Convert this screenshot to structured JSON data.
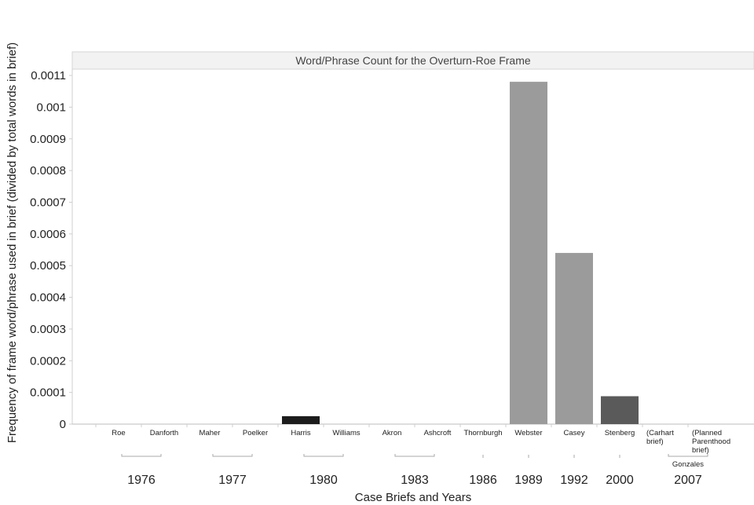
{
  "chart_data": {
    "type": "bar",
    "title": "Word/Phrase Count for the Overturn-Roe Frame",
    "xlabel": "Case Briefs and Years",
    "ylabel": "Frequency of frame word/phrase used in brief (divided by total words in brief)",
    "ylim": [
      0,
      0.00112
    ],
    "yticks": [
      "0",
      "0.0001",
      "0.0002",
      "0.0003",
      "0.0004",
      "0.0005",
      "0.0006",
      "0.0007",
      "0.0008",
      "0.0009",
      "0.001",
      "0.0011"
    ],
    "grid": false,
    "categories": [
      {
        "label": "Roe"
      },
      {
        "label": "Danforth"
      },
      {
        "label": "Maher"
      },
      {
        "label": "Poelker"
      },
      {
        "label": "Harris"
      },
      {
        "label": "Williams"
      },
      {
        "label": "Akron"
      },
      {
        "label": "Ashcroft"
      },
      {
        "label": "Thornburgh"
      },
      {
        "label": "Webster"
      },
      {
        "label": "Casey"
      },
      {
        "label": "Stenberg"
      },
      {
        "label": "(Carhart\nbrief)"
      },
      {
        "label": "(Planned\nParenthood\nbrief)"
      }
    ],
    "values": [
      0,
      0,
      0,
      0,
      2.5e-05,
      0,
      0,
      0,
      0,
      0.00108,
      0.00054,
      8.8e-05,
      0,
      0
    ],
    "bar_colors": [
      "#9b9b9b",
      "#9b9b9b",
      "#9b9b9b",
      "#9b9b9b",
      "#1c1c1c",
      "#9b9b9b",
      "#9b9b9b",
      "#9b9b9b",
      "#9b9b9b",
      "#9b9b9b",
      "#9b9b9b",
      "#5a5a5a",
      "#9b9b9b",
      "#9b9b9b"
    ],
    "year_groups": [
      {
        "year": "1976",
        "from": 0,
        "to": 1
      },
      {
        "year": "1977",
        "from": 2,
        "to": 3
      },
      {
        "year": "1980",
        "from": 4,
        "to": 5
      },
      {
        "year": "1983",
        "from": 6,
        "to": 7
      },
      {
        "year": "1986",
        "from": 8,
        "to": 8
      },
      {
        "year": "1989",
        "from": 9,
        "to": 9
      },
      {
        "year": "1992",
        "from": 10,
        "to": 10
      },
      {
        "year": "2000",
        "from": 11,
        "to": 11
      },
      {
        "year": "2007",
        "from": 12,
        "to": 13,
        "sublabel": "Gonzales"
      }
    ]
  }
}
